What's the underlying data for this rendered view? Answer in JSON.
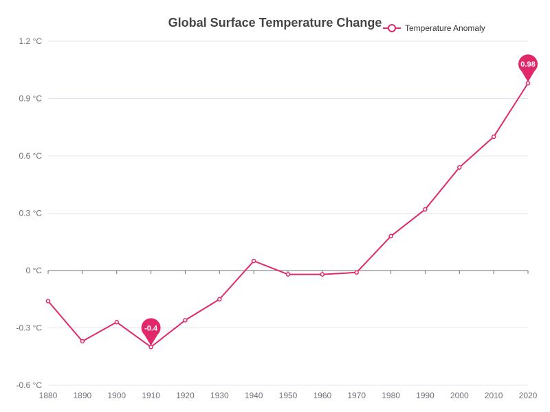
{
  "chart_data": {
    "type": "line",
    "title": "Global Surface Temperature Change",
    "xlabel": "",
    "ylabel": "",
    "x": [
      "1880",
      "1890",
      "1900",
      "1910",
      "1920",
      "1930",
      "1940",
      "1950",
      "1960",
      "1970",
      "1980",
      "1990",
      "2000",
      "2010",
      "2020"
    ],
    "series": [
      {
        "name": "Temperature Anomaly",
        "values": [
          -0.16,
          -0.37,
          -0.27,
          -0.4,
          -0.26,
          -0.15,
          0.05,
          -0.02,
          -0.02,
          -0.01,
          0.18,
          0.32,
          0.54,
          0.7,
          0.98
        ]
      }
    ],
    "ylim": [
      -0.6,
      1.2
    ],
    "yticks": [
      "1.2 °C",
      "0.9 °C",
      "0.6 °C",
      "0.3 °C",
      "0 °C",
      "-0.3 °C",
      "-0.6 °C"
    ],
    "ytick_values": [
      1.2,
      0.9,
      0.6,
      0.3,
      0,
      -0.3,
      -0.6
    ],
    "markers": [
      {
        "label": "0.98",
        "x": "2020",
        "value": 0.98
      },
      {
        "label": "-0.4",
        "x": "1910",
        "value": -0.4
      }
    ],
    "legend_position": "top-right",
    "grid": true,
    "color": "#e0286a"
  }
}
